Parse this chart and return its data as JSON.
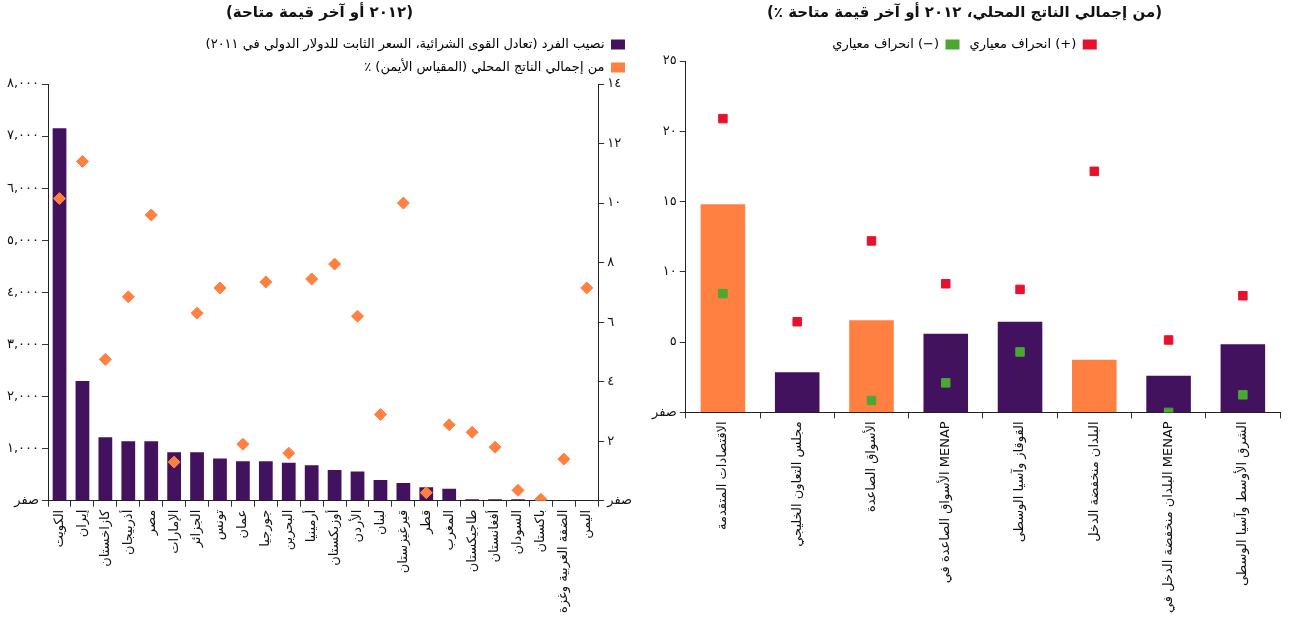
{
  "chart_data": [
    {
      "type": "bar",
      "title": "(٢٠١٢ أو آخر قيمة متاحة)",
      "categories": [
        "الكويت",
        "إيران",
        "كازاخستان",
        "أذربيجان",
        "مصر",
        "الإمارات",
        "الجزائر",
        "تونس",
        "عمان",
        "جورجيا",
        "البحرين",
        "أرمينيا",
        "أوزبكستان",
        "الأردن",
        "لبنان",
        "قيرغيزستان",
        "قطر",
        "المغرب",
        "طاجيكستان",
        "أفغانستان",
        "السودان",
        "باكستان",
        "الضفة الغربية وغزة",
        "اليمن"
      ],
      "series": [
        {
          "name": "نصيب الفرد (تعادل القوى الشرائية، السعر الثابت للدولار الدولي في ٢٠١١)",
          "color": "#43125f",
          "values": [
            7150,
            2300,
            1220,
            1140,
            1140,
            930,
            930,
            810,
            760,
            760,
            730,
            680,
            590,
            560,
            400,
            340,
            260,
            230,
            30,
            30,
            30,
            0,
            0,
            0
          ]
        },
        {
          "name": "٪ من إجمالي الناتج المحلي (المقياس الأيمن)",
          "type": "scatter",
          "axis": "y2",
          "color": "#ff8040",
          "x": [
            "الكويت",
            "إيران",
            "كازاخستان",
            "أذربيجان",
            "مصر",
            "الإمارات",
            "الجزائر",
            "تونس",
            "عمان",
            "جورجيا",
            "البحرين",
            "أرمينيا",
            "أوزبكستان",
            "الأردن",
            "لبنان",
            "قيرغيزستان",
            "قطر",
            "المغرب",
            "طاجيكستان",
            "أفغانستان",
            "السودان",
            "باكستان",
            "الضفة الغربية وغزة",
            "اليمن"
          ],
          "values": [
            10.15,
            11.4,
            4.75,
            6.85,
            9.6,
            1.3,
            6.3,
            7.15,
            1.9,
            7.35,
            1.6,
            7.45,
            7.95,
            6.2,
            2.9,
            10,
            0.27,
            2.55,
            2.3,
            1.8,
            0.35,
            0.05,
            1.4,
            7.15
          ]
        }
      ],
      "marker": "diamond",
      "ylim": [
        0,
        8000
      ],
      "yticks": [
        {
          "value": 0,
          "label": "صفر"
        },
        {
          "value": 1000,
          "label": "١,٠٠٠"
        },
        {
          "value": 2000,
          "label": "٢,٠٠٠"
        },
        {
          "value": 3000,
          "label": "٣,٠٠٠"
        },
        {
          "value": 4000,
          "label": "٤,٠٠٠"
        },
        {
          "value": 5000,
          "label": "٥,٠٠٠"
        },
        {
          "value": 6000,
          "label": "٦,٠٠٠"
        },
        {
          "value": 7000,
          "label": "٧,٠٠٠"
        },
        {
          "value": 8000,
          "label": "٨,٠٠٠"
        }
      ],
      "y2lim": [
        0,
        14
      ],
      "y2ticks": [
        {
          "value": 0,
          "label": "صفر"
        },
        {
          "value": 2,
          "label": "٢"
        },
        {
          "value": 4,
          "label": "٤"
        },
        {
          "value": 6,
          "label": "٦"
        },
        {
          "value": 8,
          "label": "٨"
        },
        {
          "value": 10,
          "label": "١٠"
        },
        {
          "value": 12,
          "label": "١٢"
        },
        {
          "value": 14,
          "label": "١٤"
        }
      ],
      "legend": "top right",
      "grid": false
    },
    {
      "type": "bar",
      "title": "(٪ من إجمالي الناتج المحلي، ٢٠١٢ أو آخر قيمة متاحة)",
      "categories": [
        "الاقتصادات المتقدمة",
        "مجلس التعاون الخليجي",
        "الأسواق الصاعدة",
        "الأسواق الصاعدة في MENAP",
        "القوقاز وآسيا الوسطى",
        "البلدان منخفضة الدخل",
        "البلدان منخفضة الدخل في MENAP",
        "الشرق الأوسط وآسيا الوسطى"
      ],
      "values": [
        14.8,
        2.85,
        6.55,
        5.6,
        6.45,
        3.75,
        2.6,
        4.85
      ],
      "colors": [
        "#ff8040",
        "#43125f",
        "#ff8040",
        "#43125f",
        "#43125f",
        "#ff8040",
        "#43125f",
        "#43125f"
      ],
      "series": [
        {
          "name": "انحراف معياري (+)",
          "type": "scatter",
          "color": "#e8112d",
          "x": [
            "الاقتصادات المتقدمة",
            "مجلس التعاون الخليجي",
            "الأسواق الصاعدة",
            "الأسواق الصاعدة في MENAP",
            "القوقاز وآسيا الوسطى",
            "البلدان منخفضة الدخل",
            "البلدان منخفضة الدخل في MENAP",
            "الشرق الأوسط وآسيا الوسطى"
          ],
          "values": [
            20.9,
            6.45,
            12.2,
            9.15,
            8.75,
            17.15,
            5.15,
            8.3
          ]
        },
        {
          "name": "انحراف معياري (−)",
          "type": "scatter",
          "color": "#4aa832",
          "x": [
            "الاقتصادات المتقدمة",
            "مجلس التعاون الخليجي",
            "الأسواق الصاعدة",
            "الأسواق الصاعدة في MENAP",
            "القوقاز وآسيا الوسطى",
            "البلدان منخفضة الدخل",
            "البلدان منخفضة الدخل في MENAP",
            "الشرق الأوسط وآسيا الوسطى"
          ],
          "values": [
            8.45,
            null,
            0.85,
            2.1,
            4.3,
            null,
            0,
            1.25
          ]
        }
      ],
      "marker": "square",
      "ylim": [
        0,
        25
      ],
      "yticks": [
        {
          "value": 0,
          "label": "صفر"
        },
        {
          "value": 5,
          "label": "٥"
        },
        {
          "value": 10,
          "label": "١٠"
        },
        {
          "value": 15,
          "label": "١٥"
        },
        {
          "value": 20,
          "label": "٢٠"
        },
        {
          "value": 25,
          "label": "٢٥"
        }
      ],
      "legend": "top",
      "grid": false
    }
  ]
}
